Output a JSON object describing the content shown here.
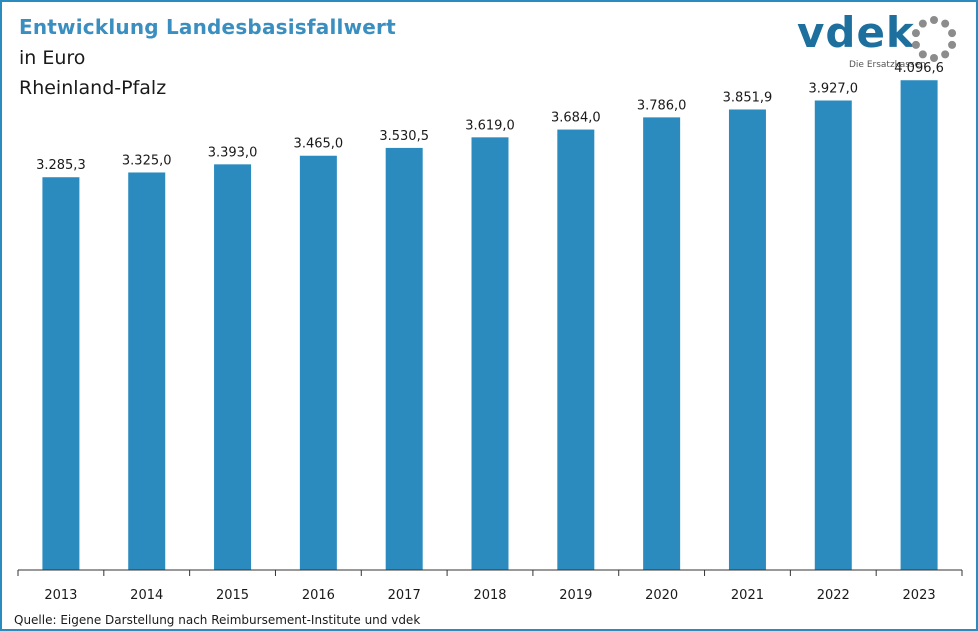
{
  "header": {
    "title": "Entwicklung Landesbasisfallwert",
    "subtitle_unit": "in Euro",
    "subtitle_region": "Rheinland-Pfalz"
  },
  "logo": {
    "word": "vdek",
    "tagline": "Die Ersatzkassen",
    "ring_icon": "dotted-circle-icon",
    "colors": {
      "word": "#1d6f9e",
      "ring": "#8c8c8c"
    }
  },
  "source": "Quelle: Eigene Darstellung nach Reimbursement-Institute  und vdek",
  "colors": {
    "bar": "#2b8bbf",
    "title": "#3a8fc0",
    "frame": "#2b8bbf"
  },
  "chart_data": {
    "type": "bar",
    "categories": [
      "2013",
      "2014",
      "2015",
      "2016",
      "2017",
      "2018",
      "2019",
      "2020",
      "2021",
      "2022",
      "2023"
    ],
    "values": [
      3285.3,
      3325.0,
      3393.0,
      3465.0,
      3530.5,
      3619.0,
      3684.0,
      3786.0,
      3851.9,
      3927.0,
      4096.6
    ],
    "data_labels": [
      "3.285,3",
      "3.325,0",
      "3.393,0",
      "3.465,0",
      "3.530,5",
      "3.619,0",
      "3.684,0",
      "3.786,0",
      "3.851,9",
      "3.927,0",
      "4.096,6"
    ],
    "title": "Entwicklung Landesbasisfallwert",
    "xlabel": "",
    "ylabel": "",
    "ylim": [
      0,
      4500
    ],
    "grid": false,
    "legend": "none"
  }
}
